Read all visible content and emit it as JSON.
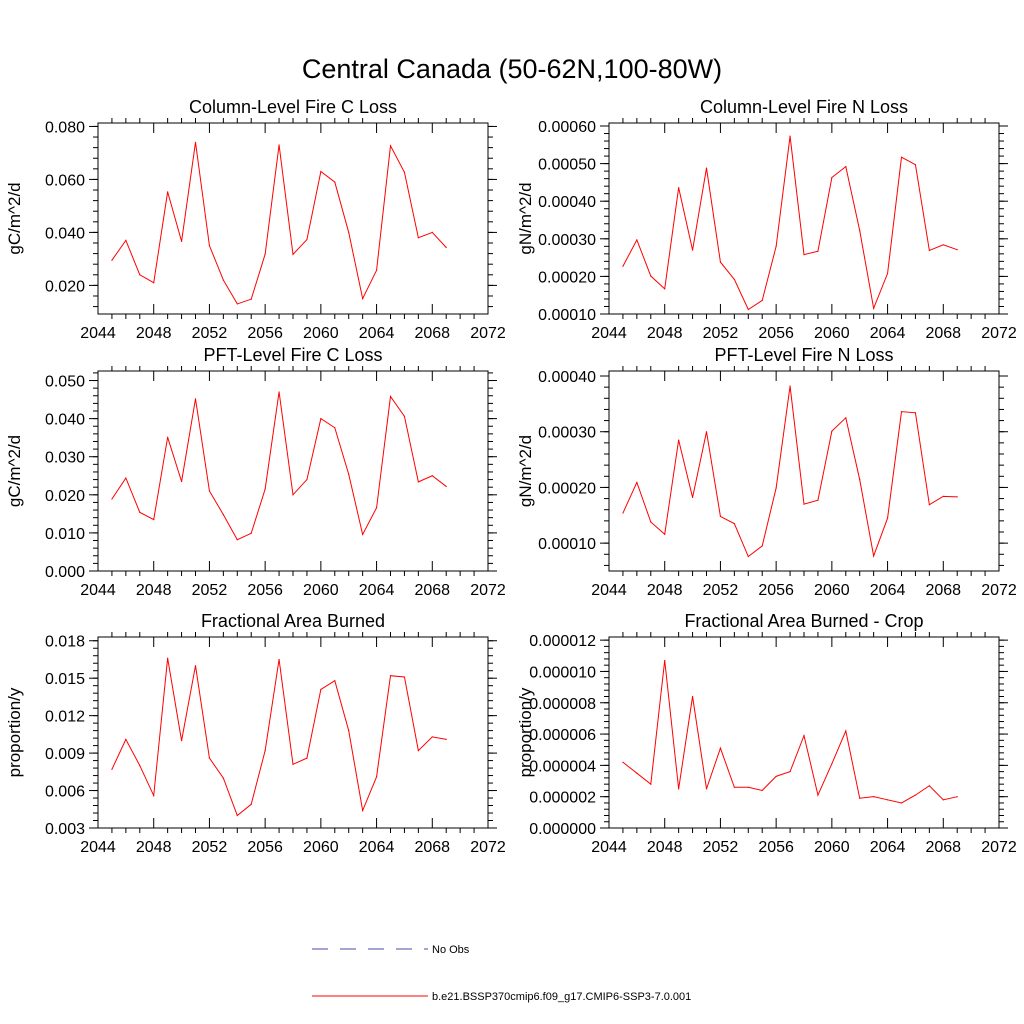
{
  "figure": {
    "title": "Central Canada (50-62N,100-80W)",
    "series_color": "#ff0000",
    "obs_color": "#4a4aa8"
  },
  "legend": {
    "items": [
      {
        "label": "No Obs",
        "style": "dashed",
        "color": "#4a4aa8"
      },
      {
        "label": "b.e21.BSSP370cmip6.f09_g17.CMIP6-SSP3-7.0.001",
        "style": "solid",
        "color": "#ff0000"
      }
    ]
  },
  "chart_data": [
    {
      "type": "line",
      "title": "Column-Level Fire C Loss",
      "ylabel": "gC/m^2/d",
      "xlabel": "",
      "xlim": [
        2044,
        2072
      ],
      "ylim": [
        0.0092,
        0.0813
      ],
      "xticks": [
        2044,
        2048,
        2052,
        2056,
        2060,
        2064,
        2068,
        2072
      ],
      "xtick_labels": [
        "2044",
        "2048",
        "2052",
        "2056",
        "2060",
        "2064",
        "2068",
        "2072"
      ],
      "yticks": [
        0.02,
        0.04,
        0.06,
        0.08
      ],
      "ytick_labels": [
        "0.020",
        "0.040",
        "0.060",
        "0.080"
      ],
      "y_minor_step": 0.004,
      "x": [
        2045,
        2046,
        2047,
        2048,
        2049,
        2050,
        2051,
        2052,
        2053,
        2054,
        2055,
        2056,
        2057,
        2058,
        2059,
        2060,
        2061,
        2062,
        2063,
        2064,
        2065,
        2066,
        2067,
        2068,
        2069
      ],
      "series": [
        {
          "values": [
            0.0295,
            0.037,
            0.024,
            0.021,
            0.0553,
            0.0366,
            0.074,
            0.035,
            0.022,
            0.013,
            0.0148,
            0.0318,
            0.073,
            0.0317,
            0.0373,
            0.063,
            0.059,
            0.04,
            0.015,
            0.0257,
            0.0727,
            0.0627,
            0.038,
            0.04,
            0.0343
          ]
        }
      ]
    },
    {
      "type": "line",
      "title": "Column-Level Fire N Loss",
      "ylabel": "gN/m^2/d",
      "xlabel": "",
      "xlim": [
        2044,
        2072
      ],
      "ylim": [
        0.0001,
        0.000608
      ],
      "xticks": [
        2044,
        2048,
        2052,
        2056,
        2060,
        2064,
        2068,
        2072
      ],
      "xtick_labels": [
        "2044",
        "2048",
        "2052",
        "2056",
        "2060",
        "2064",
        "2068",
        "2072"
      ],
      "yticks": [
        0.0001,
        0.0002,
        0.0003,
        0.0004,
        0.0005,
        0.0006
      ],
      "ytick_labels": [
        "0.00010",
        "0.00020",
        "0.00030",
        "0.00040",
        "0.00050",
        "0.00060"
      ],
      "y_minor_step": 2e-05,
      "x": [
        2045,
        2046,
        2047,
        2048,
        2049,
        2050,
        2051,
        2052,
        2053,
        2054,
        2055,
        2056,
        2057,
        2058,
        2059,
        2060,
        2061,
        2062,
        2063,
        2064,
        2065,
        2066,
        2067,
        2068,
        2069
      ],
      "series": [
        {
          "values": [
            0.000227,
            0.000297,
            0.000201,
            0.000167,
            0.000436,
            0.00027,
            0.000488,
            0.000238,
            0.000192,
            0.000112,
            0.000136,
            0.00028,
            0.000573,
            0.000258,
            0.000267,
            0.000463,
            0.000492,
            0.000322,
            0.000115,
            0.000208,
            0.000517,
            0.000497,
            0.000269,
            0.000284,
            0.000271
          ]
        }
      ]
    },
    {
      "type": "line",
      "title": "PFT-Level Fire C Loss",
      "ylabel": "gC/m^2/d",
      "xlabel": "",
      "xlim": [
        2044,
        2072
      ],
      "ylim": [
        0.0,
        0.0525
      ],
      "xticks": [
        2044,
        2048,
        2052,
        2056,
        2060,
        2064,
        2068,
        2072
      ],
      "xtick_labels": [
        "2044",
        "2048",
        "2052",
        "2056",
        "2060",
        "2064",
        "2068",
        "2072"
      ],
      "yticks": [
        0.0,
        0.01,
        0.02,
        0.03,
        0.04,
        0.05
      ],
      "ytick_labels": [
        "0.000",
        "0.010",
        "0.020",
        "0.030",
        "0.040",
        "0.050"
      ],
      "y_minor_step": 0.002,
      "x": [
        2045,
        2046,
        2047,
        2048,
        2049,
        2050,
        2051,
        2052,
        2053,
        2054,
        2055,
        2056,
        2057,
        2058,
        2059,
        2060,
        2061,
        2062,
        2063,
        2064,
        2065,
        2066,
        2067,
        2068,
        2069
      ],
      "series": [
        {
          "values": [
            0.0189,
            0.0244,
            0.0154,
            0.0135,
            0.0351,
            0.0235,
            0.0452,
            0.021,
            0.0148,
            0.0082,
            0.0099,
            0.0215,
            0.047,
            0.02,
            0.024,
            0.04,
            0.0376,
            0.0254,
            0.0096,
            0.0166,
            0.0458,
            0.0406,
            0.0234,
            0.025,
            0.0222
          ]
        }
      ]
    },
    {
      "type": "line",
      "title": "PFT-Level Fire N Loss",
      "ylabel": "gN/m^2/d",
      "xlabel": "",
      "xlim": [
        2044,
        2072
      ],
      "ylim": [
        5e-05,
        0.000409
      ],
      "xticks": [
        2044,
        2048,
        2052,
        2056,
        2060,
        2064,
        2068,
        2072
      ],
      "xtick_labels": [
        "2044",
        "2048",
        "2052",
        "2056",
        "2060",
        "2064",
        "2068",
        "2072"
      ],
      "yticks": [
        0.0001,
        0.0002,
        0.0003,
        0.0004
      ],
      "ytick_labels": [
        "0.00010",
        "0.00020",
        "0.00030",
        "0.00040"
      ],
      "y_minor_step": 2e-05,
      "x": [
        2045,
        2046,
        2047,
        2048,
        2049,
        2050,
        2051,
        2052,
        2053,
        2054,
        2055,
        2056,
        2057,
        2058,
        2059,
        2060,
        2061,
        2062,
        2063,
        2064,
        2065,
        2066,
        2067,
        2068,
        2069
      ],
      "series": [
        {
          "values": [
            0.000154,
            0.000209,
            0.000138,
            0.000116,
            0.000285,
            0.000182,
            0.0003,
            0.000148,
            0.000135,
            7.6e-05,
            9.5e-05,
            0.000199,
            0.000382,
            0.00017,
            0.000177,
            0.000301,
            0.000325,
            0.000214,
            7.7e-05,
            0.000145,
            0.000336,
            0.000334,
            0.000169,
            0.000184,
            0.000183
          ]
        }
      ]
    },
    {
      "type": "line",
      "title": "Fractional Area Burned",
      "ylabel": "proportion/y",
      "xlabel": "",
      "xlim": [
        2044,
        2072
      ],
      "ylim": [
        0.003,
        0.0183
      ],
      "xticks": [
        2044,
        2048,
        2052,
        2056,
        2060,
        2064,
        2068,
        2072
      ],
      "xtick_labels": [
        "2044",
        "2048",
        "2052",
        "2056",
        "2060",
        "2064",
        "2068",
        "2072"
      ],
      "yticks": [
        0.003,
        0.006,
        0.009,
        0.012,
        0.015,
        0.018
      ],
      "ytick_labels": [
        "0.003",
        "0.006",
        "0.009",
        "0.012",
        "0.015",
        "0.018"
      ],
      "y_minor_step": 0.0006,
      "x": [
        2045,
        2046,
        2047,
        2048,
        2049,
        2050,
        2051,
        2052,
        2053,
        2054,
        2055,
        2056,
        2057,
        2058,
        2059,
        2060,
        2061,
        2062,
        2063,
        2064,
        2065,
        2066,
        2067,
        2068,
        2069
      ],
      "series": [
        {
          "values": [
            0.0077,
            0.0101,
            0.008,
            0.0056,
            0.0166,
            0.01,
            0.016,
            0.0086,
            0.007,
            0.004,
            0.0049,
            0.0092,
            0.0165,
            0.0081,
            0.0086,
            0.0141,
            0.0148,
            0.0108,
            0.0044,
            0.0071,
            0.0152,
            0.0151,
            0.0092,
            0.0103,
            0.0101
          ]
        }
      ]
    },
    {
      "type": "line",
      "title": "Fractional Area Burned - Crop",
      "ylabel": "proportion/y",
      "xlabel": "",
      "xlim": [
        2044,
        2072
      ],
      "ylim": [
        0.0,
        1.22e-05
      ],
      "xticks": [
        2044,
        2048,
        2052,
        2056,
        2060,
        2064,
        2068,
        2072
      ],
      "xtick_labels": [
        "2044",
        "2048",
        "2052",
        "2056",
        "2060",
        "2064",
        "2068",
        "2072"
      ],
      "yticks": [
        0.0,
        2e-06,
        4e-06,
        6e-06,
        8e-06,
        1e-05,
        1.2e-05
      ],
      "ytick_labels": [
        "0.000000",
        "0.000002",
        "0.000004",
        "0.000006",
        "0.000008",
        "0.000010",
        "0.000012"
      ],
      "y_minor_step": 4e-07,
      "x": [
        2045,
        2046,
        2047,
        2048,
        2049,
        2050,
        2051,
        2052,
        2053,
        2054,
        2055,
        2056,
        2057,
        2058,
        2059,
        2060,
        2061,
        2062,
        2063,
        2064,
        2065,
        2066,
        2067,
        2068,
        2069
      ],
      "series": [
        {
          "values": [
            4.2e-06,
            3.5e-06,
            2.8e-06,
            1.07e-05,
            2.5e-06,
            8.4e-06,
            2.5e-06,
            5.1e-06,
            2.6e-06,
            2.6e-06,
            2.4e-06,
            3.3e-06,
            3.6e-06,
            5.9e-06,
            2.1e-06,
            4.1e-06,
            6.2e-06,
            1.9e-06,
            2e-06,
            1.8e-06,
            1.6e-06,
            2.1e-06,
            2.7e-06,
            1.8e-06,
            2e-06
          ]
        }
      ]
    }
  ]
}
